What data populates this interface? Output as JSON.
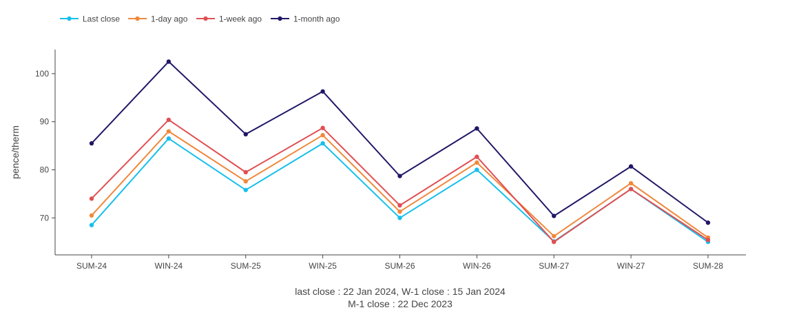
{
  "chart_data": {
    "type": "line",
    "title": "",
    "xlabel": "",
    "ylabel": "pence/therm",
    "categories": [
      "SUM-24",
      "WIN-24",
      "SUM-25",
      "WIN-25",
      "SUM-26",
      "WIN-26",
      "SUM-27",
      "WIN-27",
      "SUM-28"
    ],
    "ylim": [
      62.3,
      105
    ],
    "yticks": [
      70,
      80,
      90,
      100
    ],
    "grid": false,
    "legend_position": "top-left",
    "series": [
      {
        "name": "Last close",
        "color": "#16bfed",
        "values": [
          68.5,
          86.5,
          75.8,
          85.5,
          70.0,
          80.0,
          65.1,
          76.0,
          65.0
        ]
      },
      {
        "name": "1-day ago",
        "color": "#f0883b",
        "values": [
          70.5,
          88.0,
          77.6,
          87.2,
          71.3,
          81.5,
          66.2,
          77.2,
          65.9
        ]
      },
      {
        "name": "1-week ago",
        "color": "#e04f52",
        "values": [
          74.0,
          90.4,
          79.5,
          88.7,
          72.6,
          82.7,
          65.0,
          76.0,
          65.4
        ]
      },
      {
        "name": "1-month ago",
        "color": "#201766",
        "values": [
          85.5,
          102.5,
          87.4,
          96.3,
          78.7,
          88.6,
          70.4,
          80.7,
          69.0
        ]
      }
    ],
    "annotations": [
      "last close : 22 Jan 2024, W-1 close : 15 Jan 2024",
      "M-1 close : 22 Dec 2023"
    ]
  }
}
